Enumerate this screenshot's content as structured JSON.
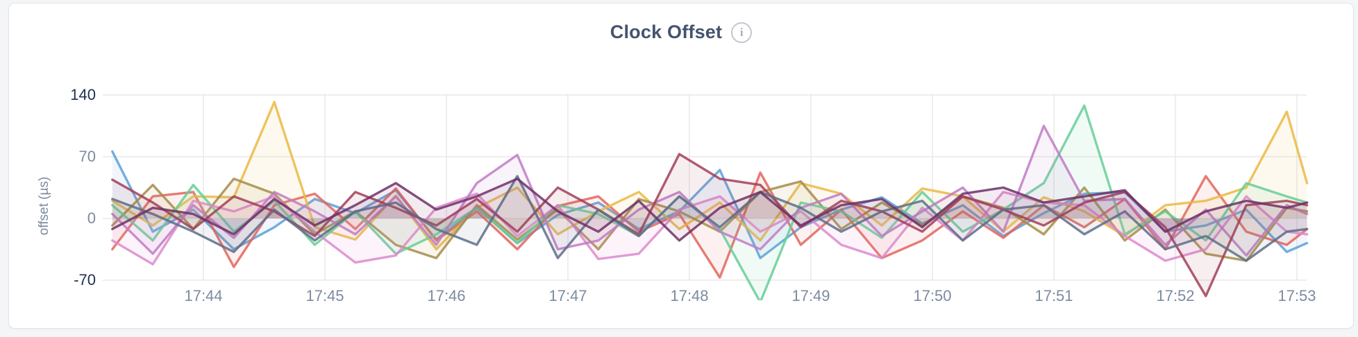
{
  "page": {
    "background": "#F4F5F6"
  },
  "card": {
    "background": "#FFFFFF",
    "border_color": "#E3E4E7"
  },
  "header": {
    "title": "Clock Offset",
    "info_icon_glyph": "i"
  },
  "chart_data": {
    "type": "line",
    "title": "Clock Offset",
    "ylabel": "offset (µs)",
    "ylim": [
      -70,
      140
    ],
    "yticks": [
      140,
      70,
      0,
      -70
    ],
    "ytick_extremes": [
      140,
      -70
    ],
    "grid": true,
    "legend_position": "none",
    "line_style": "jagged line with translucent area fill to zero",
    "x_tick_labels": [
      "17:44",
      "17:45",
      "17:46",
      "17:47",
      "17:48",
      "17:49",
      "17:50",
      "17:51",
      "17:52",
      "17:53"
    ],
    "x_tick_seconds_after_17_43": [
      60,
      120,
      180,
      240,
      300,
      360,
      420,
      480,
      540,
      600
    ],
    "x_seconds_after_17_43": [
      15,
      35,
      55,
      75,
      95,
      115,
      135,
      155,
      175,
      195,
      215,
      235,
      255,
      275,
      295,
      315,
      335,
      355,
      375,
      395,
      415,
      435,
      455,
      475,
      495,
      515,
      535,
      555,
      575,
      595,
      605
    ],
    "axis_colors": {
      "extreme_tick": "#20304F",
      "normal_tick": "#7C8AA0",
      "gridline": "#E9E9E9"
    },
    "series": [
      {
        "name": "blue",
        "color": "#5C9FD9",
        "values": [
          76,
          -15,
          10,
          -35,
          -10,
          22,
          6,
          32,
          -24,
          12,
          -28,
          4,
          18,
          -12,
          8,
          55,
          -45,
          -10,
          10,
          24,
          -6,
          15,
          -20,
          6,
          28,
          30,
          -15,
          -8,
          10,
          -38,
          -28
        ]
      },
      {
        "name": "red",
        "color": "#E2655D",
        "values": [
          -35,
          25,
          30,
          -55,
          15,
          28,
          -12,
          34,
          -25,
          8,
          -35,
          14,
          25,
          -15,
          5,
          -67,
          52,
          -30,
          10,
          -45,
          -25,
          8,
          -22,
          15,
          -10,
          22,
          -35,
          48,
          -15,
          -30,
          -12
        ]
      },
      {
        "name": "gold",
        "color": "#EBB844",
        "values": [
          20,
          -8,
          25,
          24,
          132,
          -10,
          -24,
          26,
          -35,
          12,
          35,
          -18,
          8,
          30,
          -12,
          18,
          -25,
          40,
          28,
          -8,
          34,
          25,
          -15,
          24,
          8,
          -20,
          15,
          20,
          35,
          121,
          40
        ]
      },
      {
        "name": "olive",
        "color": "#A68C46",
        "values": [
          -8,
          38,
          -12,
          45,
          28,
          -18,
          8,
          -30,
          -45,
          15,
          -24,
          10,
          -35,
          22,
          8,
          -15,
          30,
          42,
          -12,
          18,
          -8,
          25,
          12,
          -18,
          35,
          -25,
          10,
          -40,
          -48,
          12,
          8
        ]
      },
      {
        "name": "green",
        "color": "#66CE97",
        "values": [
          15,
          -25,
          38,
          -15,
          20,
          -30,
          8,
          -40,
          -18,
          12,
          -28,
          15,
          5,
          -20,
          25,
          -12,
          -95,
          18,
          8,
          -22,
          30,
          -15,
          10,
          40,
          128,
          -18,
          8,
          -25,
          40,
          25,
          18
        ]
      },
      {
        "name": "orchid",
        "color": "#DC8ACB",
        "values": [
          -25,
          -52,
          20,
          8,
          25,
          -15,
          -50,
          -42,
          12,
          28,
          -20,
          15,
          -46,
          -40,
          10,
          25,
          -15,
          8,
          -30,
          -45,
          12,
          -25,
          30,
          18,
          15,
          -20,
          -48,
          -35,
          25,
          -15,
          -18
        ]
      },
      {
        "name": "violet",
        "color": "#C07BC6",
        "values": [
          5,
          -40,
          15,
          -22,
          30,
          8,
          -18,
          25,
          -30,
          40,
          72,
          -35,
          -25,
          10,
          30,
          -15,
          -35,
          12,
          28,
          -20,
          8,
          35,
          -15,
          105,
          20,
          22,
          -30,
          10,
          -42,
          15,
          5
        ]
      },
      {
        "name": "maroon",
        "color": "#A23E59",
        "values": [
          44,
          18,
          -12,
          25,
          8,
          -20,
          30,
          12,
          -8,
          22,
          -15,
          35,
          10,
          -18,
          73,
          45,
          38,
          -10,
          20,
          8,
          -15,
          25,
          10,
          -8,
          18,
          30,
          -10,
          -88,
          15,
          20,
          15
        ]
      },
      {
        "name": "slate",
        "color": "#5E6D88",
        "values": [
          22,
          5,
          -15,
          -38,
          10,
          -25,
          8,
          18,
          -12,
          -30,
          48,
          -45,
          10,
          -20,
          25,
          -10,
          30,
          12,
          -15,
          8,
          20,
          -25,
          10,
          15,
          -18,
          8,
          -35,
          -20,
          -48,
          -15,
          -12
        ]
      },
      {
        "name": "plum",
        "color": "#6F3066",
        "values": [
          -12,
          12,
          5,
          -18,
          22,
          -8,
          15,
          40,
          10,
          25,
          45,
          8,
          -15,
          20,
          -25,
          12,
          30,
          -8,
          15,
          22,
          -10,
          28,
          35,
          18,
          25,
          32,
          -15,
          8,
          20,
          12,
          18
        ]
      }
    ],
    "fill_opacity": 0.09
  }
}
